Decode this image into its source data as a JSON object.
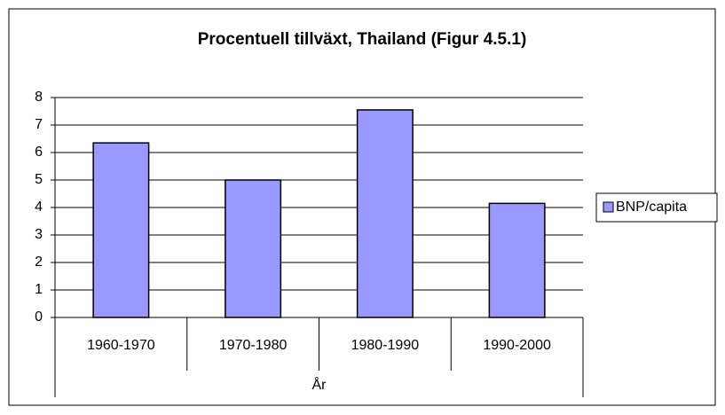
{
  "chart_data": {
    "type": "bar",
    "title": "Procentuell tillväxt, Thailand (Figur 4.5.1)",
    "categories": [
      "1960-1970",
      "1970-1980",
      "1980-1990",
      "1990-2000"
    ],
    "x_label": "År",
    "series": [
      {
        "name": "BNP/capita",
        "color": "#9999ff",
        "values": [
          6.35,
          5.0,
          7.55,
          4.15
        ]
      }
    ],
    "ylim": [
      0,
      8
    ],
    "yticks": [
      0,
      1,
      2,
      3,
      4,
      5,
      6,
      7,
      8
    ],
    "grid": true,
    "legend": "right"
  }
}
